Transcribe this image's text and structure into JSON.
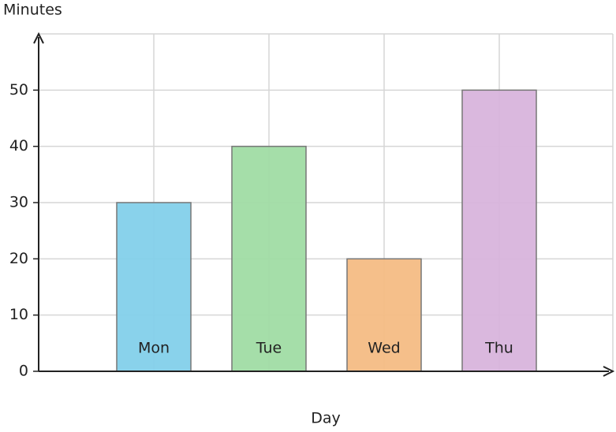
{
  "chart_data": {
    "type": "bar",
    "ylabel": "Minutes",
    "xlabel": "Day",
    "categories": [
      "Mon",
      "Tue",
      "Wed",
      "Thu"
    ],
    "values": [
      30,
      40,
      20,
      50
    ],
    "colors": [
      "#83d0ea",
      "#a0dca4",
      "#f4bc84",
      "#d8b4dc"
    ],
    "ylim": [
      0,
      60
    ],
    "yticks": [
      0,
      10,
      20,
      30,
      40,
      50
    ],
    "grid": true
  }
}
